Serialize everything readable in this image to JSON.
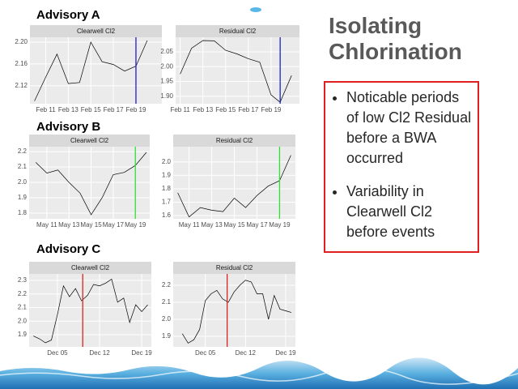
{
  "slide": {
    "title": "Isolating Chlorination",
    "bullets": [
      "Noticable periods of low Cl2 Residual before a BWA occurred",
      "Variability in Clearwell Cl2 before events"
    ]
  },
  "sections": [
    "Advisory A",
    "Advisory B",
    "Advisory C"
  ],
  "chart_data": [
    {
      "type": "line",
      "title": "Clearwell Cl2",
      "color": "#000000",
      "grid": true,
      "x": [
        10,
        11,
        12,
        13,
        14,
        15,
        16,
        17,
        18,
        19,
        20
      ],
      "values": [
        2.092,
        2.136,
        2.178,
        2.124,
        2.126,
        2.2,
        2.164,
        2.159,
        2.147,
        2.156,
        2.203
      ],
      "xlim": [
        9.6,
        21.3
      ],
      "ylim": [
        2.087,
        2.209
      ],
      "xticks": [
        {
          "value": 11,
          "label": "Feb 11"
        },
        {
          "value": 13,
          "label": "Feb 13"
        },
        {
          "value": 15,
          "label": "Feb 15"
        },
        {
          "value": 17,
          "label": "Feb 17"
        },
        {
          "value": 19,
          "label": "Feb 19"
        }
      ],
      "yticks": [
        2.12,
        2.16,
        {
          "value": 2.2,
          "label": "2.20"
        }
      ],
      "marker_x": 19,
      "marker_color": "#1f1fbf"
    },
    {
      "type": "line",
      "title": "Residual Cl2",
      "color": "#000000",
      "grid": true,
      "x": [
        11,
        12,
        13,
        14,
        15,
        16,
        17,
        18,
        19,
        19.8,
        20.8
      ],
      "values": [
        1.975,
        2.062,
        2.088,
        2.087,
        2.055,
        2.043,
        2.027,
        2.015,
        1.905,
        1.88,
        1.97
      ],
      "xlim": [
        10.6,
        21.5
      ],
      "ylim": [
        1.875,
        2.099
      ],
      "xticks": [
        {
          "value": 11,
          "label": "Feb 11"
        },
        {
          "value": 13,
          "label": "Feb 13"
        },
        {
          "value": 15,
          "label": "Feb 15"
        },
        {
          "value": 17,
          "label": "Feb 17"
        },
        {
          "value": 19,
          "label": "Feb 19"
        }
      ],
      "yticks": [
        {
          "value": 1.9,
          "label": "1.90"
        },
        1.95,
        {
          "value": 2.0,
          "label": "2.00"
        },
        2.05
      ],
      "marker_x": 19.8,
      "marker_color": "#1f1fbf"
    },
    {
      "type": "line",
      "title": "Clearwell Cl2",
      "color": "#000000",
      "grid": true,
      "x": [
        10,
        11,
        12,
        13,
        14,
        15,
        16,
        17,
        18,
        19,
        20
      ],
      "values": [
        2.13,
        2.06,
        2.08,
        2.0,
        1.93,
        1.79,
        1.9,
        2.05,
        2.065,
        2.11,
        2.195
      ],
      "xlim": [
        9.4,
        20.3
      ],
      "ylim": [
        1.763,
        2.232
      ],
      "xticks": [
        {
          "value": 11,
          "label": "May 11"
        },
        {
          "value": 13,
          "label": "May 13"
        },
        {
          "value": 15,
          "label": "May 15"
        },
        {
          "value": 17,
          "label": "May 17"
        },
        {
          "value": 19,
          "label": "May 19"
        }
      ],
      "yticks": [
        1.8,
        1.9,
        {
          "value": 2.0,
          "label": "2.0"
        },
        2.1,
        2.2
      ],
      "marker_x": 19,
      "marker_color": "#33dd33"
    },
    {
      "type": "line",
      "title": "Residual Cl2",
      "color": "#000000",
      "grid": true,
      "x": [
        10,
        11,
        12,
        13,
        14,
        15,
        16,
        17,
        18,
        19,
        20
      ],
      "values": [
        1.77,
        1.59,
        1.66,
        1.64,
        1.63,
        1.73,
        1.66,
        1.75,
        1.82,
        1.86,
        2.05
      ],
      "xlim": [
        9.6,
        20.4
      ],
      "ylim": [
        1.576,
        2.114
      ],
      "xticks": [
        {
          "value": 11,
          "label": "May 11"
        },
        {
          "value": 13,
          "label": "May 13"
        },
        {
          "value": 15,
          "label": "May 15"
        },
        {
          "value": 17,
          "label": "May 17"
        },
        {
          "value": 19,
          "label": "May 19"
        }
      ],
      "yticks": [
        1.6,
        1.7,
        1.8,
        1.9,
        {
          "value": 2.0,
          "label": "2.0"
        }
      ],
      "marker_x": 19,
      "marker_color": "#33dd33"
    },
    {
      "type": "line",
      "title": "Clearwell Cl2",
      "color": "#000000",
      "grid": true,
      "x": [
        1,
        2,
        3,
        4,
        5,
        6,
        7,
        8,
        9,
        10,
        11,
        12,
        13,
        14,
        15,
        16,
        17,
        18,
        19,
        20
      ],
      "values": [
        1.89,
        1.87,
        1.84,
        1.86,
        2.05,
        2.26,
        2.18,
        2.24,
        2.15,
        2.19,
        2.27,
        2.26,
        2.28,
        2.31,
        2.14,
        2.17,
        1.99,
        2.12,
        2.07,
        2.12
      ],
      "xlim": [
        0.3,
        20.6
      ],
      "ylim": [
        1.81,
        2.348
      ],
      "xticks": [
        {
          "value": 5,
          "label": "Dec 05"
        },
        {
          "value": 12,
          "label": "Dec 12"
        },
        {
          "value": 19,
          "label": "Dec 19"
        }
      ],
      "yticks": [
        1.9,
        {
          "value": 2.0,
          "label": "2.0"
        },
        2.1,
        2.2,
        2.3
      ],
      "marker_x": 9.2,
      "marker_color": "#e02020"
    },
    {
      "type": "line",
      "title": "Residual Cl2",
      "color": "#000000",
      "grid": true,
      "x": [
        1,
        2,
        3,
        4,
        5,
        6,
        7,
        8,
        9,
        10,
        11,
        12,
        13,
        14,
        15,
        16,
        17,
        18,
        19,
        20
      ],
      "values": [
        1.915,
        1.86,
        1.88,
        1.94,
        2.11,
        2.15,
        2.17,
        2.12,
        2.1,
        2.16,
        2.2,
        2.23,
        2.22,
        2.15,
        2.15,
        2.0,
        2.14,
        2.06,
        2.05,
        2.04
      ],
      "xlim": [
        -0.6,
        20.7
      ],
      "ylim": [
        1.838,
        2.267
      ],
      "xticks": [
        {
          "value": 5,
          "label": "Dec 05"
        },
        {
          "value": 12,
          "label": "Dec 12"
        },
        {
          "value": 19,
          "label": "Dec 19"
        }
      ],
      "yticks": [
        1.9,
        {
          "value": 2.0,
          "label": "2.0"
        },
        2.1,
        2.2
      ],
      "marker_x": 8.8,
      "marker_color": "#e02020"
    }
  ]
}
